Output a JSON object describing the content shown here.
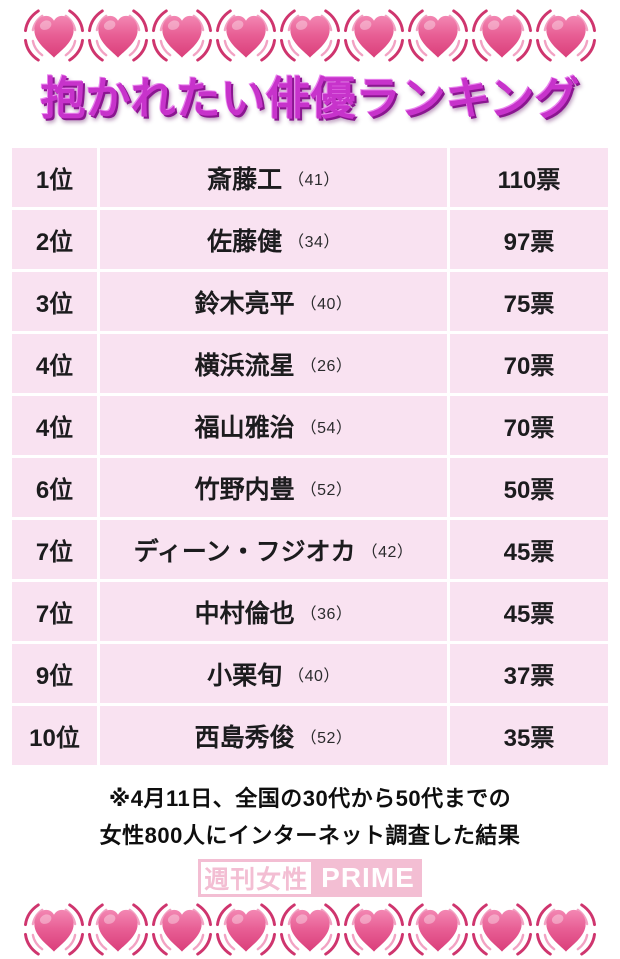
{
  "title": "抱かれたい俳優ランキング",
  "chart_data": {
    "type": "table",
    "title": "抱かれたい俳優ランキング",
    "rows": [
      {
        "rank": "1位",
        "name": "斎藤工",
        "age": "（41）",
        "votes": "110票",
        "votes_numeric": 110
      },
      {
        "rank": "2位",
        "name": "佐藤健",
        "age": "（34）",
        "votes": "97票",
        "votes_numeric": 97
      },
      {
        "rank": "3位",
        "name": "鈴木亮平",
        "age": "（40）",
        "votes": "75票",
        "votes_numeric": 75
      },
      {
        "rank": "4位",
        "name": "横浜流星",
        "age": "（26）",
        "votes": "70票",
        "votes_numeric": 70
      },
      {
        "rank": "4位",
        "name": "福山雅治",
        "age": "（54）",
        "votes": "70票",
        "votes_numeric": 70
      },
      {
        "rank": "6位",
        "name": "竹野内豊",
        "age": "（52）",
        "votes": "50票",
        "votes_numeric": 50
      },
      {
        "rank": "7位",
        "name": "ディーン・フジオカ",
        "age": "（42）",
        "votes": "45票",
        "votes_numeric": 45
      },
      {
        "rank": "7位",
        "name": "中村倫也",
        "age": "（36）",
        "votes": "45票",
        "votes_numeric": 45
      },
      {
        "rank": "9位",
        "name": "小栗旬",
        "age": "（40）",
        "votes": "37票",
        "votes_numeric": 37
      },
      {
        "rank": "10位",
        "name": "西島秀俊",
        "age": "（52）",
        "votes": "35票",
        "votes_numeric": 35
      }
    ],
    "footnote": "※4月11日、全国の30代から50代までの女性800人にインターネット調査した結果",
    "source_logo": "週刊女性PRIME"
  },
  "footnote": {
    "line1": "※4月11日、全国の30代から50代までの",
    "line2": "女性800人にインターネット調査した結果"
  },
  "logo": {
    "kanji": "週刊女性",
    "latin": "PRIME",
    "pink": "#f0acc7"
  },
  "decor": {
    "heart_icon": "beating-heart-icon",
    "hearts_per_row": 9,
    "heart_pink": "#e85f95",
    "heart_pink_dark": "#da3e7a",
    "arc_dark_pink": "#cf356e",
    "arc_light_pink": "#f2a2c3"
  },
  "colors": {
    "title_magenta": "#c733cb",
    "title_shadow_purple": "#8a1690",
    "table_cell_pink": "#f9e2f1",
    "table_text": "#1c1c1e",
    "background": "#ffffff"
  }
}
